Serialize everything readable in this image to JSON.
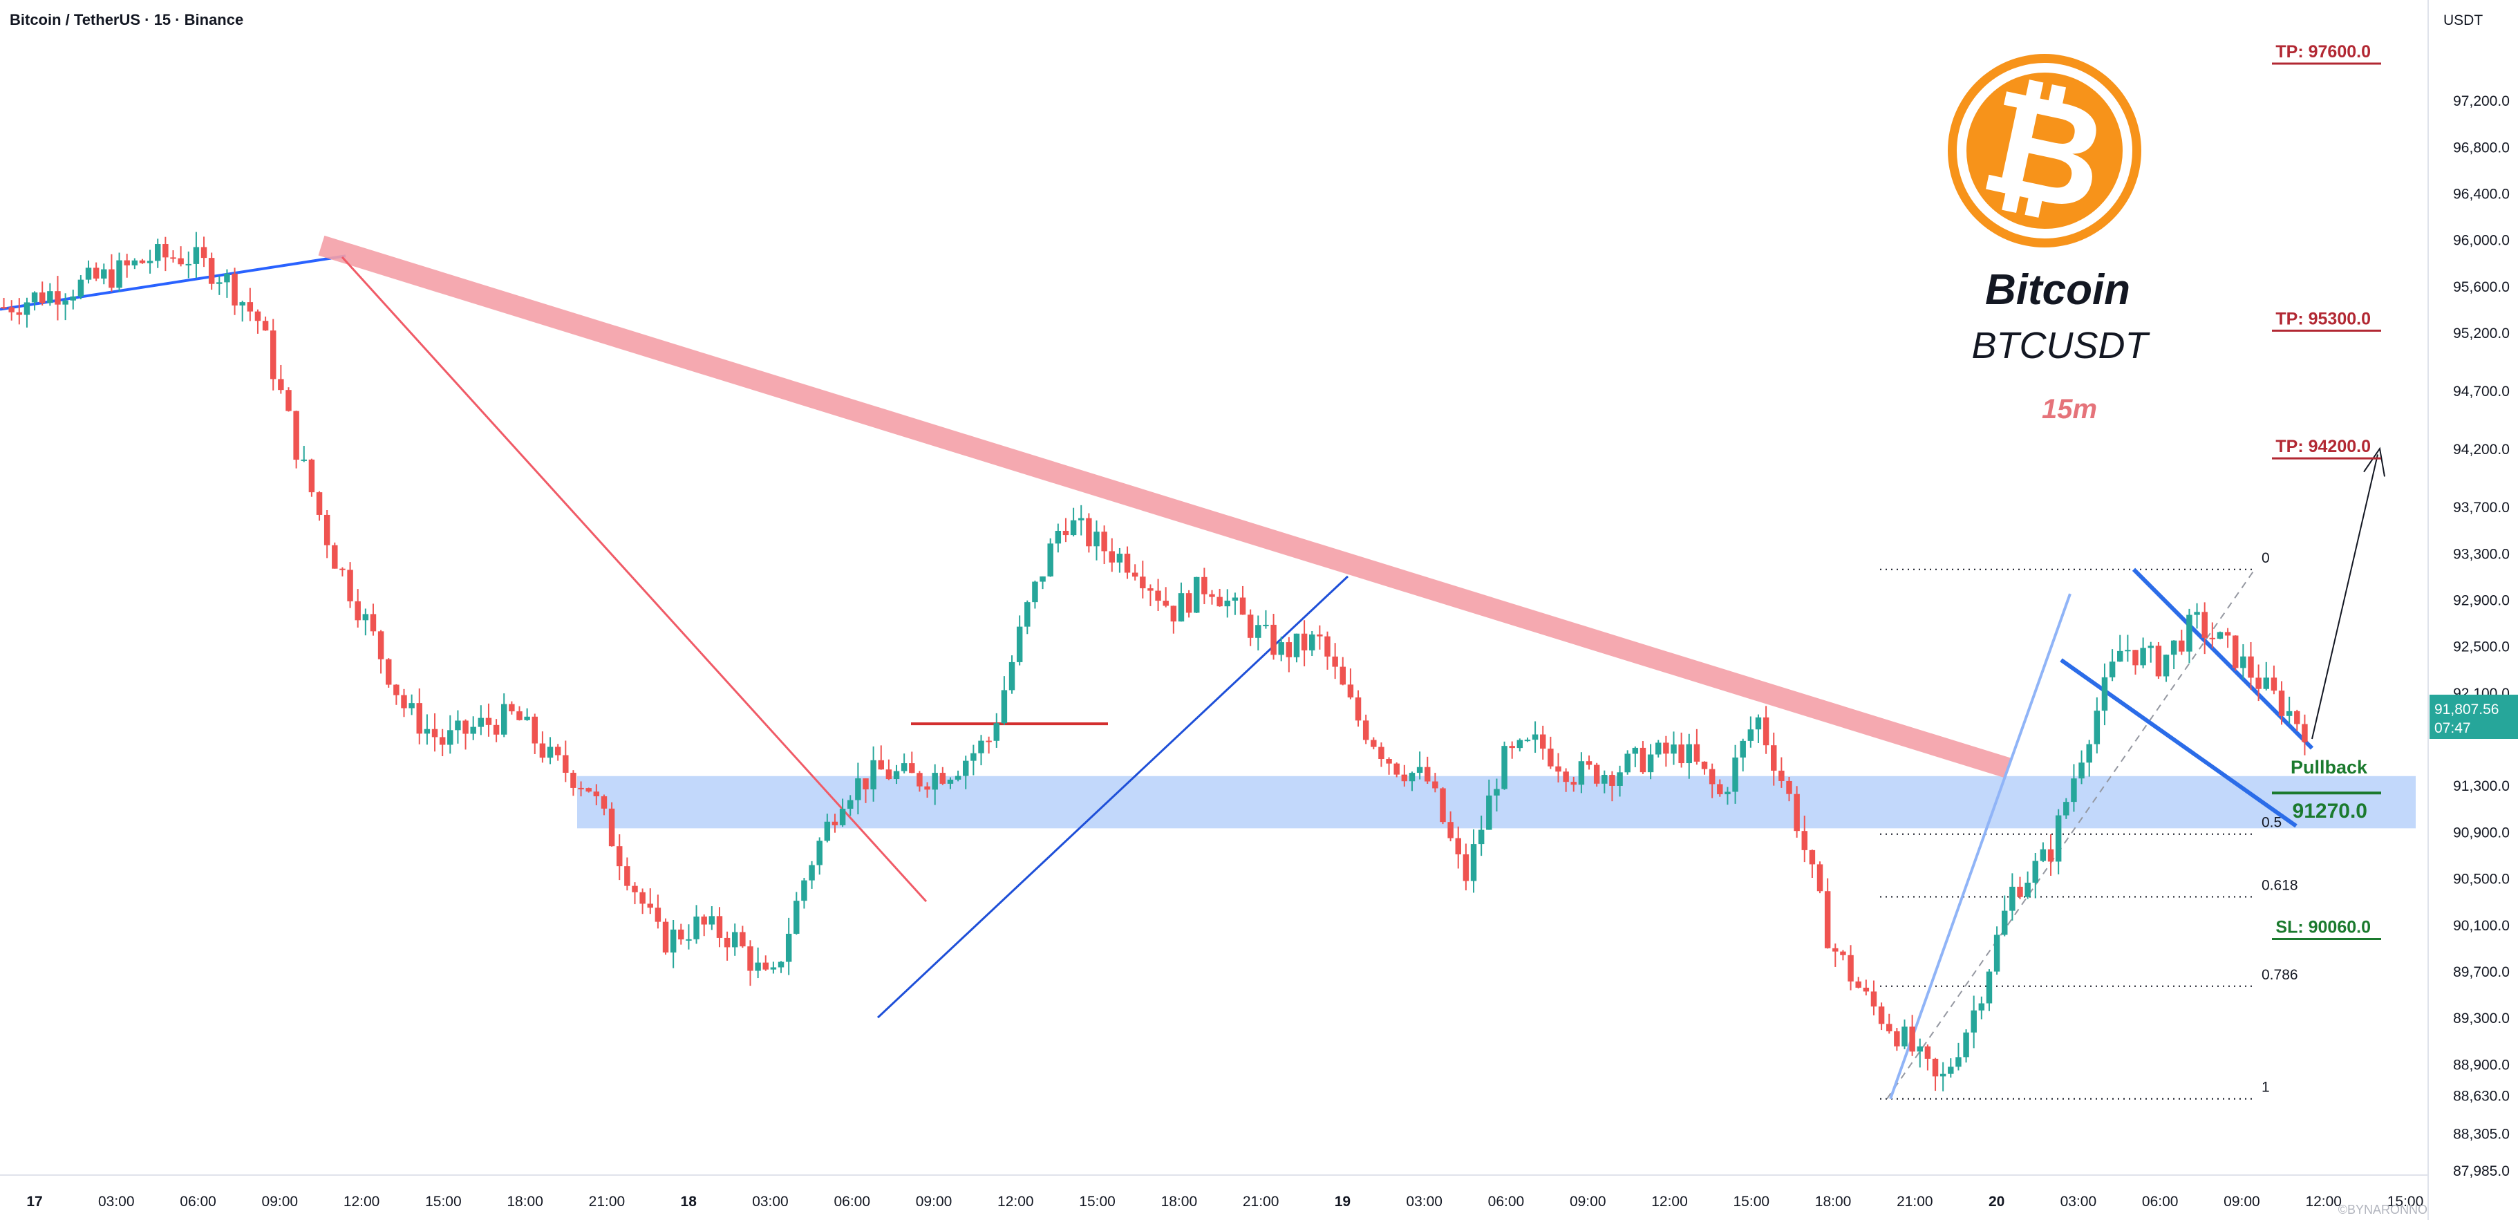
{
  "header": {
    "symbol_title": "Bitcoin / TetherUS · 15 · Binance",
    "currency": "USDT"
  },
  "branding": {
    "coin_name": "Bitcoin",
    "ticker": "BTCUSDT",
    "timeframe": "15m",
    "logo_symbol": "₿",
    "logo_color": "#f7931a"
  },
  "price_scale": {
    "ticks": [
      97200,
      96800,
      96400,
      96000,
      95600,
      95200,
      94700,
      94200,
      93700,
      93300,
      92900,
      92500,
      92100,
      91300,
      90900,
      90500,
      90100,
      89700,
      89300,
      88900,
      88630,
      88305,
      87985
    ],
    "tick_labels": [
      "97,200.0",
      "96,800.0",
      "96,400.0",
      "96,000.0",
      "95,600.0",
      "95,200.0",
      "94,700.0",
      "94,200.0",
      "93,700.0",
      "93,300.0",
      "92,900.0",
      "92,500.0",
      "92,100.0",
      "91,300.0",
      "90,900.0",
      "90,500.0",
      "90,100.0",
      "89,700.0",
      "89,300.0",
      "88,900.0",
      "88,630.0",
      "88,305.0",
      "87,985.0"
    ],
    "current_price": "91,807.56",
    "countdown": "07:47",
    "current_price_color": "#26a69a"
  },
  "time_axis": {
    "labels": [
      "17",
      "03:00",
      "06:00",
      "09:00",
      "12:00",
      "15:00",
      "18:00",
      "21:00",
      "18",
      "03:00",
      "06:00",
      "09:00",
      "12:00",
      "15:00",
      "18:00",
      "21:00",
      "19",
      "03:00",
      "06:00",
      "09:00",
      "12:00",
      "15:00",
      "18:00",
      "21:00",
      "20",
      "03:00",
      "06:00",
      "09:00",
      "12:00",
      "15:00"
    ]
  },
  "targets": [
    {
      "label": "TP: 97600.0",
      "price": 97600,
      "color": "#b22833"
    },
    {
      "label": "TP: 95300.0",
      "price": 95300,
      "color": "#b22833"
    },
    {
      "label": "TP: 94200.0",
      "price": 94200,
      "color": "#b22833"
    }
  ],
  "stop_loss": {
    "label": "SL: 90060.0",
    "price": 90060,
    "color": "#1b7a2e"
  },
  "pullback": {
    "label": "Pullback",
    "value": "91270.0",
    "price": 91270,
    "color": "#1b7a2e"
  },
  "fibonacci": {
    "levels": [
      {
        "label": "0",
        "price": 93160
      },
      {
        "label": "0.5",
        "price": 90880
      },
      {
        "label": "0.618",
        "price": 90340
      },
      {
        "label": "0.786",
        "price": 89570
      },
      {
        "label": "1",
        "price": 88600
      }
    ]
  },
  "support_zone": {
    "low": 90930,
    "high": 91380,
    "color": "#aecbfa"
  },
  "watermark": "©BYNARONNO",
  "chart_data": {
    "type": "candlestick",
    "title": "Bitcoin / TetherUS · 15 · Binance",
    "ylabel": "USDT",
    "ylim": [
      87800,
      97800
    ],
    "price_path": [
      [
        0,
        95420
      ],
      [
        1,
        95520
      ],
      [
        2,
        95600
      ],
      [
        3,
        95700
      ],
      [
        4,
        95840
      ],
      [
        5,
        95860
      ],
      [
        6,
        95690
      ],
      [
        7,
        95290
      ],
      [
        8,
        94220
      ],
      [
        9,
        93300
      ],
      [
        10,
        92650
      ],
      [
        11,
        91950
      ],
      [
        12,
        91670
      ],
      [
        13,
        91810
      ],
      [
        14,
        91900
      ],
      [
        15,
        91510
      ],
      [
        16,
        91300
      ],
      [
        17,
        90600
      ],
      [
        18,
        89950
      ],
      [
        19,
        90100
      ],
      [
        20,
        89980
      ],
      [
        21,
        89560
      ],
      [
        22,
        90580
      ],
      [
        23,
        91250
      ],
      [
        24,
        91420
      ],
      [
        25,
        91350
      ],
      [
        26,
        91450
      ],
      [
        27,
        91700
      ],
      [
        28,
        92800
      ],
      [
        29,
        93600
      ],
      [
        30,
        93360
      ],
      [
        31,
        93200
      ],
      [
        32,
        92800
      ],
      [
        33,
        93050
      ],
      [
        34,
        92700
      ],
      [
        35,
        92450
      ],
      [
        36,
        92550
      ],
      [
        37,
        91900
      ],
      [
        38,
        91500
      ],
      [
        39,
        91330
      ],
      [
        40,
        90480
      ],
      [
        41,
        91500
      ],
      [
        42,
        91660
      ],
      [
        43,
        91400
      ],
      [
        44,
        91420
      ],
      [
        45,
        91540
      ],
      [
        46,
        91600
      ],
      [
        47,
        91200
      ],
      [
        48,
        91900
      ],
      [
        49,
        91100
      ],
      [
        50,
        89950
      ],
      [
        51,
        89450
      ],
      [
        52,
        89120
      ],
      [
        53,
        88700
      ],
      [
        54,
        89400
      ],
      [
        55,
        90400
      ],
      [
        56,
        90700
      ],
      [
        57,
        91700
      ],
      [
        58,
        92500
      ],
      [
        59,
        92350
      ],
      [
        60,
        92700
      ],
      [
        61,
        92450
      ],
      [
        62,
        92100
      ],
      [
        63,
        91800
      ]
    ]
  }
}
